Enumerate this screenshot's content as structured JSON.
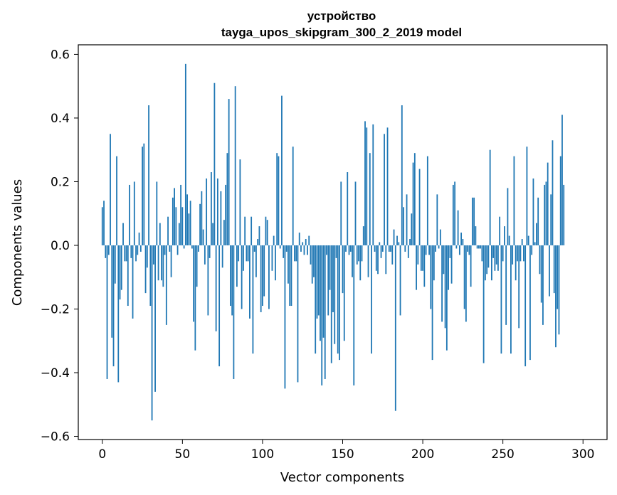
{
  "chart_data": {
    "type": "bar",
    "title_line1": "устройство",
    "title_line2": "tayga_upos_skipgram_300_2_2019 model",
    "xlabel": "Vector components",
    "ylabel": "Components values",
    "xlim": [
      -15,
      315
    ],
    "ylim": [
      -0.61,
      0.63
    ],
    "xticks": [
      0,
      50,
      100,
      150,
      200,
      250,
      300
    ],
    "xtick_labels": [
      "0",
      "50",
      "100",
      "150",
      "200",
      "250",
      "300"
    ],
    "yticks": [
      -0.6,
      -0.4,
      -0.2,
      0.0,
      0.2,
      0.4,
      0.6
    ],
    "ytick_labels": [
      "−0.6",
      "−0.4",
      "−0.2",
      "0.0",
      "0.2",
      "0.4",
      "0.6"
    ],
    "bar_color": "#1f77b4",
    "values": [
      0.12,
      0.14,
      -0.04,
      -0.42,
      -0.03,
      0.35,
      -0.29,
      -0.38,
      -0.12,
      0.28,
      -0.43,
      -0.17,
      -0.14,
      0.07,
      -0.05,
      -0.05,
      -0.19,
      0.19,
      -0.04,
      -0.23,
      0.2,
      -0.05,
      -0.03,
      0.04,
      -0.02,
      0.31,
      0.32,
      -0.15,
      -0.07,
      0.44,
      -0.19,
      -0.55,
      -0.06,
      -0.46,
      0.2,
      -0.11,
      0.07,
      -0.11,
      -0.13,
      -0.03,
      -0.25,
      0.09,
      -0.02,
      -0.1,
      0.15,
      0.18,
      0.12,
      -0.03,
      0.07,
      0.19,
      0.12,
      -0.01,
      0.57,
      0.16,
      0.1,
      0.14,
      -0.01,
      -0.24,
      -0.33,
      -0.13,
      -0.02,
      0.13,
      0.17,
      0.05,
      -0.06,
      0.21,
      -0.22,
      -0.04,
      0.23,
      0.07,
      0.51,
      -0.27,
      0.21,
      -0.38,
      0.17,
      -0.07,
      0.08,
      0.19,
      0.29,
      0.46,
      -0.19,
      -0.22,
      -0.42,
      0.5,
      -0.13,
      -0.05,
      0.27,
      -0.2,
      -0.08,
      0.09,
      -0.05,
      -0.05,
      -0.23,
      0.09,
      -0.34,
      -0.02,
      -0.1,
      0.02,
      0.06,
      -0.21,
      -0.19,
      -0.16,
      0.09,
      0.08,
      -0.2,
      0.0,
      -0.08,
      0.03,
      -0.11,
      0.29,
      0.28,
      -0.01,
      0.47,
      -0.04,
      -0.45,
      -0.02,
      -0.12,
      -0.19,
      -0.19,
      0.31,
      -0.05,
      -0.05,
      -0.43,
      0.04,
      -0.02,
      0.01,
      -0.03,
      0.02,
      -0.03,
      0.03,
      -0.06,
      -0.12,
      -0.1,
      -0.34,
      -0.23,
      -0.22,
      -0.3,
      -0.44,
      -0.29,
      -0.42,
      -0.03,
      -0.22,
      -0.14,
      -0.37,
      -0.21,
      -0.31,
      -0.04,
      -0.34,
      -0.36,
      0.2,
      -0.15,
      -0.3,
      -0.02,
      0.23,
      -0.03,
      -0.02,
      -0.1,
      -0.44,
      0.2,
      -0.06,
      -0.05,
      -0.11,
      -0.05,
      0.06,
      0.39,
      0.37,
      -0.1,
      0.29,
      -0.34,
      0.38,
      -0.02,
      -0.08,
      -0.09,
      0.01,
      -0.04,
      -0.02,
      0.35,
      -0.09,
      0.37,
      -0.02,
      -0.02,
      -0.06,
      0.05,
      -0.52,
      0.03,
      0.01,
      -0.22,
      0.44,
      0.12,
      -0.02,
      0.16,
      -0.04,
      0.02,
      0.1,
      0.26,
      0.29,
      -0.14,
      -0.06,
      0.24,
      -0.08,
      -0.08,
      -0.13,
      -0.03,
      0.28,
      -0.03,
      -0.2,
      -0.36,
      -0.11,
      -0.02,
      0.16,
      -0.01,
      0.05,
      -0.24,
      -0.09,
      -0.26,
      -0.33,
      -0.14,
      -0.04,
      -0.12,
      0.19,
      0.2,
      -0.01,
      0.11,
      -0.03,
      0.04,
      0.02,
      -0.2,
      -0.24,
      -0.02,
      -0.03,
      -0.13,
      0.15,
      0.15,
      0.06,
      -0.01,
      -0.01,
      -0.01,
      -0.05,
      -0.37,
      -0.11,
      -0.09,
      -0.07,
      0.3,
      -0.11,
      -0.04,
      -0.08,
      -0.06,
      -0.08,
      0.09,
      -0.34,
      -0.05,
      0.06,
      -0.25,
      0.18,
      0.03,
      -0.34,
      -0.06,
      0.28,
      -0.11,
      -0.05,
      -0.26,
      -0.05,
      0.02,
      -0.05,
      -0.38,
      0.31,
      0.03,
      -0.36,
      -0.03,
      0.21,
      0.01,
      0.07,
      0.15,
      -0.09,
      -0.18,
      -0.25,
      0.19,
      0.2,
      0.26,
      -0.16,
      0.16,
      0.33,
      -0.15,
      -0.32,
      -0.2,
      -0.28,
      0.28,
      0.41,
      0.19
    ]
  }
}
